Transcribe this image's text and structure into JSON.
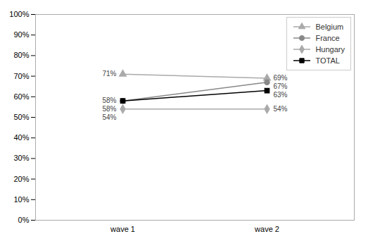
{
  "chart_data": {
    "type": "line",
    "categories": [
      "wave 1",
      "wave 2"
    ],
    "series": [
      {
        "name": "Belgium",
        "color": "#aaaaaa",
        "marker": "triangle",
        "values": [
          71,
          69
        ],
        "value_labels": [
          "71%",
          "69%"
        ]
      },
      {
        "name": "France",
        "color": "#888888",
        "marker": "circle",
        "values": [
          58,
          67
        ],
        "value_labels": [
          "58%",
          "67%"
        ]
      },
      {
        "name": "Hungary",
        "color": "#aaaaaa",
        "marker": "diamond",
        "values": [
          54,
          54
        ],
        "value_labels": [
          "54%",
          "54%"
        ]
      },
      {
        "name": "TOTAL",
        "color": "#000000",
        "marker": "square",
        "values": [
          58,
          63
        ],
        "value_labels": [
          "58%",
          "63%"
        ]
      }
    ],
    "ylim": [
      0,
      100
    ],
    "yticks": [
      {
        "value": 0,
        "label": "0%"
      },
      {
        "value": 10,
        "label": "10%"
      },
      {
        "value": 20,
        "label": "20%"
      },
      {
        "value": 30,
        "label": "30%"
      },
      {
        "value": 40,
        "label": "40%"
      },
      {
        "value": 50,
        "label": "50%"
      },
      {
        "value": 60,
        "label": "60%"
      },
      {
        "value": 70,
        "label": "70%"
      },
      {
        "value": 80,
        "label": "80%"
      },
      {
        "value": 90,
        "label": "90%"
      },
      {
        "value": 100,
        "label": "100%"
      }
    ],
    "data_labels": true,
    "legend": "upper right",
    "grid": false
  }
}
